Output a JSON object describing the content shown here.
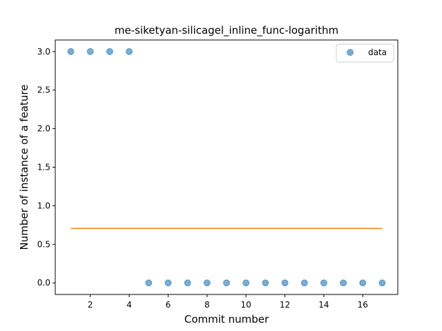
{
  "chart_data": {
    "type": "scatter",
    "title": "me-siketyan-silicagel_inline_func-logarithm",
    "xlabel": "Commit number",
    "ylabel": "Number of instance of a feature",
    "xlim": [
      0.2,
      17.8
    ],
    "ylim": [
      -0.15,
      3.15
    ],
    "xticks": [
      2,
      4,
      6,
      8,
      10,
      12,
      14,
      16
    ],
    "yticks": [
      0.0,
      0.5,
      1.0,
      1.5,
      2.0,
      2.5,
      3.0
    ],
    "xtick_labels": [
      "2",
      "4",
      "6",
      "8",
      "10",
      "12",
      "14",
      "16"
    ],
    "ytick_labels": [
      "0.0",
      "0.5",
      "1.0",
      "1.5",
      "2.0",
      "2.5",
      "3.0"
    ],
    "grid": false,
    "legend_position": "upper right",
    "series": [
      {
        "name": "data",
        "kind": "scatter",
        "color": "#1f77b4",
        "alpha": 0.6,
        "x": [
          1,
          2,
          3,
          4,
          5,
          6,
          7,
          8,
          9,
          10,
          11,
          12,
          13,
          14,
          15,
          16,
          17
        ],
        "y": [
          3,
          3,
          3,
          3,
          0,
          0,
          0,
          0,
          0,
          0,
          0,
          0,
          0,
          0,
          0,
          0,
          0
        ]
      },
      {
        "kind": "line",
        "color": "#ff7f0e",
        "x": [
          1,
          17
        ],
        "y": [
          0.706,
          0.706
        ]
      }
    ]
  }
}
